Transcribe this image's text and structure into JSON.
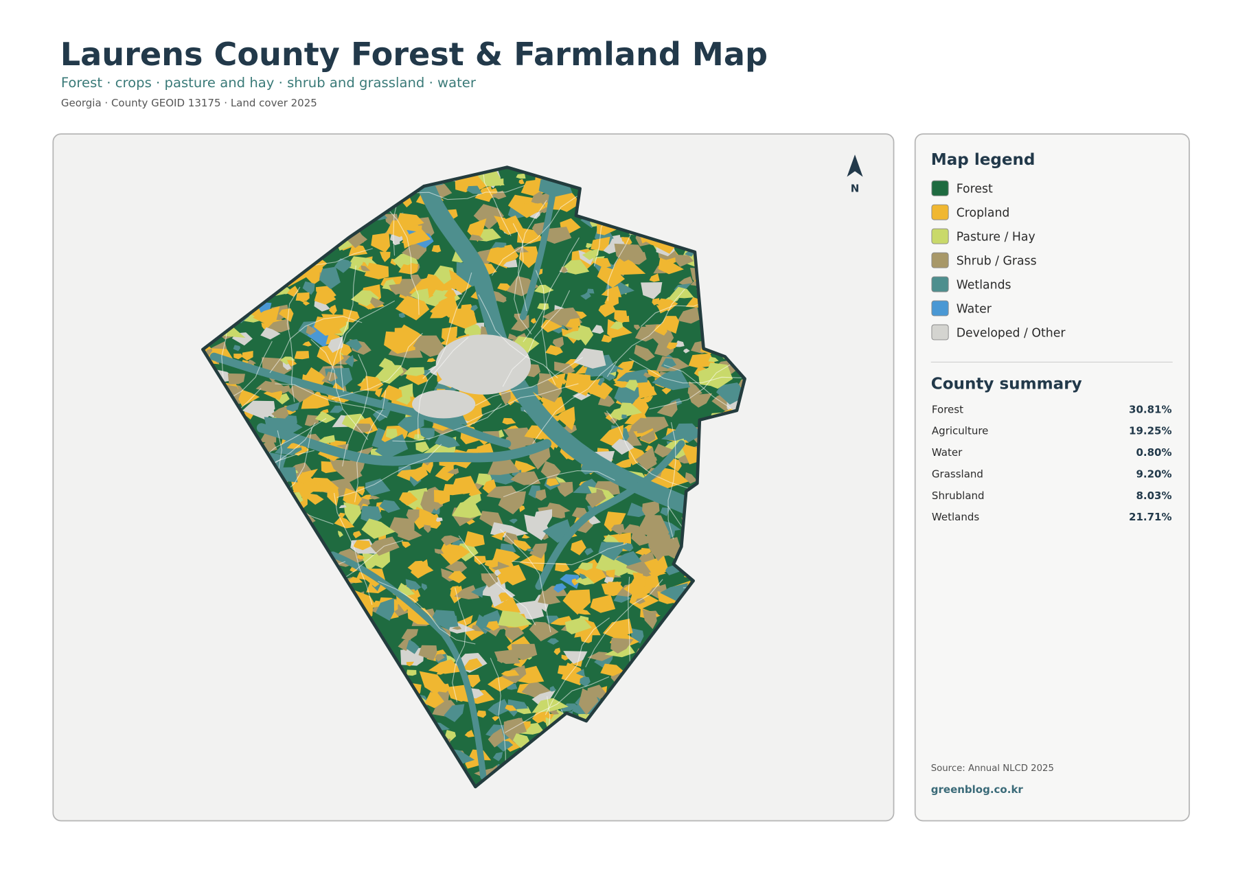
{
  "header": {
    "title": "Laurens County Forest & Farmland Map",
    "subtitle": "Forest · crops · pasture and hay · shrub and grassland · water",
    "meta": "Georgia · County GEOID 13175 · Land cover 2025"
  },
  "map": {
    "north_label": "N"
  },
  "legend": {
    "title": "Map legend",
    "items": [
      {
        "label": "Forest",
        "color": "#1f6b40"
      },
      {
        "label": "Cropland",
        "color": "#f0b731"
      },
      {
        "label": "Pasture / Hay",
        "color": "#c9d96a"
      },
      {
        "label": "Shrub / Grass",
        "color": "#a89868"
      },
      {
        "label": "Wetlands",
        "color": "#4e8f8e"
      },
      {
        "label": "Water",
        "color": "#4a98d4"
      },
      {
        "label": "Developed / Other",
        "color": "#d4d4d0"
      }
    ]
  },
  "summary": {
    "title": "County summary",
    "rows": [
      {
        "label": "Forest",
        "value": "30.81%"
      },
      {
        "label": "Agriculture",
        "value": "19.25%"
      },
      {
        "label": "Water",
        "value": "0.80%"
      },
      {
        "label": "Grassland",
        "value": "9.20%"
      },
      {
        "label": "Shrubland",
        "value": "8.03%"
      },
      {
        "label": "Wetlands",
        "value": "21.71%"
      }
    ]
  },
  "footer": {
    "source": "Source: Annual NLCD 2025",
    "credit": "greenblog.co.kr"
  }
}
